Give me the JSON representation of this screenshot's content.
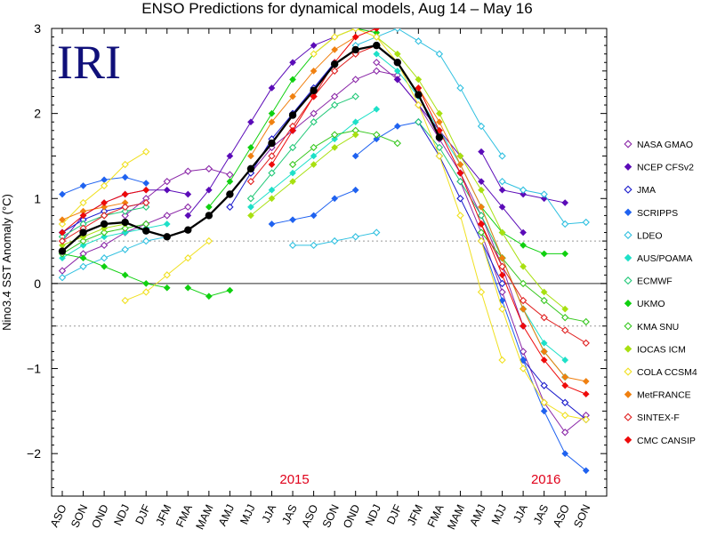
{
  "chart_data": {
    "type": "line",
    "title": "ENSO Predictions for dynamical models, Aug 14 – May 16",
    "logo_text": "IRI",
    "ylabel": "Nino3.4 SST Anomaly (°C)",
    "xlabel": "",
    "ylim": [
      -2.5,
      3.0
    ],
    "yticks": [
      -2,
      -1,
      0,
      1,
      2,
      3
    ],
    "reference_lines": [
      0.5,
      -0.5
    ],
    "categories": [
      "ASO",
      "SON",
      "OND",
      "NDJ",
      "DJF",
      "JFM",
      "FMA",
      "MAM",
      "AMJ",
      "MJJ",
      "JJA",
      "JAS",
      "ASO",
      "SON",
      "OND",
      "NDJ",
      "DJF",
      "JFM",
      "FMA",
      "MAM",
      "AMJ",
      "MJJ",
      "JJA",
      "JAS",
      "ASO",
      "SON"
    ],
    "year_labels": [
      {
        "text": "2015",
        "index": 11
      },
      {
        "text": "2016",
        "index": 23
      }
    ],
    "observed": {
      "name": "Observed",
      "color": "#000000",
      "values": [
        0.38,
        0.6,
        0.7,
        0.72,
        0.62,
        0.55,
        0.63,
        0.8,
        1.05,
        1.35,
        1.65,
        1.98,
        2.27,
        2.58,
        2.75,
        2.8,
        2.6,
        2.22,
        1.72
      ]
    },
    "series": [
      {
        "name": "NASA GMAO",
        "color": "#8b28a8",
        "marker": "open-diamond",
        "runs": [
          {
            "start": 0,
            "values": [
              0.15,
              0.35,
              0.45,
              0.6,
              0.7,
              0.8,
              0.9
            ]
          },
          {
            "start": 3,
            "values": [
              0.8,
              1.0,
              1.2,
              1.32,
              1.35,
              1.28
            ]
          },
          {
            "start": 9,
            "values": [
              1.3,
              1.6,
              1.8,
              2.0,
              2.2,
              2.4,
              2.5,
              2.45
            ]
          },
          {
            "start": 15,
            "values": [
              2.6,
              2.4,
              2.1,
              1.7,
              1.3,
              0.8,
              0.2,
              -0.5
            ]
          },
          {
            "start": 19,
            "values": [
              1.2,
              0.6,
              -0.1,
              -0.8,
              -1.4,
              -1.75,
              -1.55
            ]
          }
        ]
      },
      {
        "name": "NCEP CFSv2",
        "color": "#5b0bb8",
        "marker": "filled-diamond",
        "runs": [
          {
            "start": 0,
            "values": [
              0.5,
              0.8,
              0.95,
              1.05,
              1.1,
              1.1,
              1.05
            ]
          },
          {
            "start": 6,
            "values": [
              0.8,
              1.1,
              1.5,
              1.9,
              2.3,
              2.6,
              2.8,
              2.9
            ]
          },
          {
            "start": 16,
            "values": [
              2.4,
              2.1,
              1.8,
              1.5,
              1.2,
              0.9,
              0.6
            ]
          },
          {
            "start": 20,
            "values": [
              1.55,
              1.1,
              1.05,
              1.0,
              0.95
            ]
          }
        ]
      },
      {
        "name": "JMA",
        "color": "#1a1acc",
        "marker": "open-diamond",
        "runs": [
          {
            "start": 0,
            "values": [
              0.6,
              0.75,
              0.85,
              0.9,
              0.95
            ]
          },
          {
            "start": 8,
            "values": [
              0.9,
              1.3,
              1.7,
              2.0,
              2.3,
              2.6
            ]
          },
          {
            "start": 17,
            "values": [
              1.9,
              1.5,
              1.0,
              0.5,
              0.0
            ]
          },
          {
            "start": 22,
            "values": [
              -0.9,
              -1.2,
              -1.4,
              -1.6
            ]
          }
        ]
      },
      {
        "name": "SCRIPPS",
        "color": "#1f62f0",
        "marker": "filled-diamond",
        "runs": [
          {
            "start": 0,
            "values": [
              1.05,
              1.15,
              1.22,
              1.25,
              1.18
            ]
          },
          {
            "start": 10,
            "values": [
              0.7,
              0.75,
              0.8,
              1.0,
              1.1
            ]
          },
          {
            "start": 14,
            "values": [
              1.5,
              1.7,
              1.85,
              1.9
            ]
          },
          {
            "start": 20,
            "values": [
              0.5,
              -0.2,
              -0.9,
              -1.5,
              -2.0,
              -2.2
            ]
          }
        ]
      },
      {
        "name": "LDEO",
        "color": "#30c0e0",
        "marker": "open-diamond",
        "runs": [
          {
            "start": 0,
            "values": [
              0.07,
              0.2,
              0.3,
              0.4,
              0.5,
              0.55
            ]
          },
          {
            "start": 11,
            "values": [
              0.45,
              0.45,
              0.5,
              0.55,
              0.6
            ]
          },
          {
            "start": 14,
            "values": [
              2.8,
              2.9,
              3.0,
              2.85,
              2.7,
              2.3,
              1.85,
              1.5
            ]
          },
          {
            "start": 21,
            "values": [
              1.2,
              1.1,
              1.05,
              0.7,
              0.72
            ]
          }
        ]
      },
      {
        "name": "AUS/POAMA",
        "color": "#1ee0c8",
        "marker": "filled-diamond",
        "runs": [
          {
            "start": 0,
            "values": [
              0.3,
              0.45,
              0.55,
              0.6,
              0.65,
              0.7
            ]
          },
          {
            "start": 9,
            "values": [
              0.9,
              1.1,
              1.3,
              1.5,
              1.7,
              1.9,
              2.05
            ]
          },
          {
            "start": 15,
            "values": [
              2.7,
              2.5,
              2.2,
              1.8,
              1.4,
              0.9,
              0.3,
              -0.3,
              -0.7,
              -0.9
            ]
          }
        ]
      },
      {
        "name": "ECMWF",
        "color": "#22c878",
        "marker": "open-diamond",
        "runs": [
          {
            "start": 0,
            "values": [
              0.55,
              0.7,
              0.8,
              0.85,
              0.9
            ]
          },
          {
            "start": 9,
            "values": [
              1.0,
              1.3,
              1.6,
              1.9,
              2.1,
              2.2
            ]
          },
          {
            "start": 17,
            "values": [
              1.9,
              1.6,
              1.2,
              0.8,
              0.3,
              -0.3,
              -0.8,
              -1.1
            ]
          }
        ]
      },
      {
        "name": "UKMO",
        "color": "#10d010",
        "marker": "filled-diamond",
        "runs": [
          {
            "start": 0,
            "values": [
              0.35,
              0.3,
              0.2,
              0.1,
              0.0,
              -0.05
            ]
          },
          {
            "start": 6,
            "values": [
              -0.05,
              -0.15,
              -0.08
            ]
          },
          {
            "start": 7,
            "values": [
              0.9,
              1.2,
              1.6,
              2.0,
              2.4,
              2.7,
              2.9,
              3.0,
              2.95
            ]
          },
          {
            "start": 20,
            "values": [
              0.9,
              0.6,
              0.45,
              0.35,
              0.35
            ]
          }
        ]
      },
      {
        "name": "KMA SNU",
        "color": "#38c820",
        "marker": "open-diamond",
        "runs": [
          {
            "start": 0,
            "values": [
              0.35,
              0.5,
              0.6,
              0.65,
              0.7
            ]
          },
          {
            "start": 11,
            "values": [
              1.4,
              1.6,
              1.75,
              1.8,
              1.75,
              1.65
            ]
          },
          {
            "start": 20,
            "values": [
              0.6,
              0.3,
              0.0,
              -0.2,
              -0.4,
              -0.45
            ]
          }
        ]
      },
      {
        "name": "IOCAS ICM",
        "color": "#a8e010",
        "marker": "filled-diamond",
        "runs": [
          {
            "start": 0,
            "values": [
              0.45,
              0.55,
              0.65,
              0.7
            ]
          },
          {
            "start": 9,
            "values": [
              0.8,
              1.0,
              1.2,
              1.4,
              1.6,
              1.75
            ]
          },
          {
            "start": 15,
            "values": [
              2.9,
              2.7,
              2.4,
              2.0,
              1.5,
              1.1,
              0.6,
              0.2,
              -0.1,
              -0.3
            ]
          }
        ]
      },
      {
        "name": "COLA CCSM4",
        "color": "#f0e020",
        "marker": "open-diamond",
        "runs": [
          {
            "start": 0,
            "values": [
              0.7,
              0.95,
              1.15,
              1.4,
              1.55
            ]
          },
          {
            "start": 3,
            "values": [
              -0.2,
              -0.1,
              0.1,
              0.3,
              0.5
            ]
          },
          {
            "start": 12,
            "values": [
              2.7,
              2.9,
              3.0,
              2.9,
              2.6,
              2.1,
              1.5,
              0.8,
              -0.1,
              -0.9
            ]
          },
          {
            "start": 20,
            "values": [
              0.5,
              -0.3,
              -1.0,
              -1.4,
              -1.55,
              -1.6
            ]
          }
        ]
      },
      {
        "name": "MetFRANCE",
        "color": "#f08010",
        "marker": "filled-diamond",
        "runs": [
          {
            "start": 0,
            "values": [
              0.75,
              0.85,
              0.9,
              0.95
            ]
          },
          {
            "start": 9,
            "values": [
              1.5,
              1.9,
              2.2,
              2.5,
              2.75,
              2.9
            ]
          },
          {
            "start": 17,
            "values": [
              2.3,
              1.9,
              1.4,
              0.9,
              0.3,
              -0.3,
              -0.8,
              -1.1,
              -1.15
            ]
          }
        ]
      },
      {
        "name": "SINTEX-F",
        "color": "#e02020",
        "marker": "open-diamond",
        "runs": [
          {
            "start": 0,
            "values": [
              0.5,
              0.65,
              0.8,
              0.9,
              0.95
            ]
          },
          {
            "start": 9,
            "values": [
              1.2,
              1.5,
              1.85,
              2.2,
              2.5,
              2.7,
              2.8
            ]
          },
          {
            "start": 20,
            "values": [
              0.7,
              0.2,
              -0.2,
              -0.4,
              -0.55,
              -0.7
            ]
          }
        ]
      },
      {
        "name": "CMC CANSIP",
        "color": "#ee0a0a",
        "marker": "filled-diamond",
        "runs": [
          {
            "start": 0,
            "values": [
              0.6,
              0.8,
              0.95,
              1.05,
              1.1
            ]
          },
          {
            "start": 10,
            "values": [
              1.4,
              1.8,
              2.2,
              2.6,
              2.9,
              3.0
            ]
          },
          {
            "start": 17,
            "values": [
              2.3,
              1.8,
              1.3,
              0.7,
              0.1,
              -0.5,
              -0.9,
              -1.2,
              -1.3
            ]
          }
        ]
      }
    ]
  }
}
